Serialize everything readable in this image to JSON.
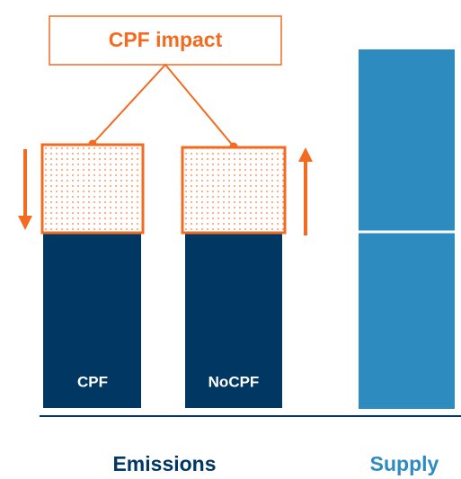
{
  "callout": {
    "label": "CPF impact"
  },
  "bars": [
    {
      "label": "CPF"
    },
    {
      "label": "NoCPF"
    }
  ],
  "groups": [
    {
      "label": "Emissions"
    },
    {
      "label": "Supply"
    }
  ]
}
